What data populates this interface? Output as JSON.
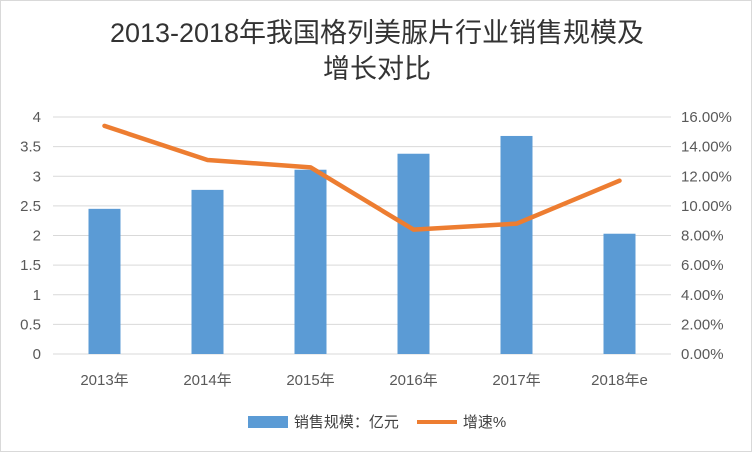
{
  "chart_data": {
    "type": "bar+line",
    "title": "2013-2018年我国格列美脲片行业销售规模及增长对比",
    "title_lines": [
      "2013-2018年我国格列美脲片行业销售规模及",
      "增长对比"
    ],
    "categories": [
      "2013年",
      "2014年",
      "2015年",
      "2016年",
      "2017年",
      "2018年e"
    ],
    "series": [
      {
        "name": "销售规模：亿元",
        "type": "bar",
        "axis": "left",
        "color": "#5b9bd5",
        "values": [
          2.45,
          2.77,
          3.11,
          3.38,
          3.68,
          2.03
        ]
      },
      {
        "name": "增速%",
        "type": "line",
        "axis": "right",
        "color": "#ed7d31",
        "values": [
          15.4,
          13.1,
          12.6,
          8.4,
          8.8,
          11.7
        ]
      }
    ],
    "left_axis": {
      "ylim": [
        0,
        4
      ],
      "ticks": [
        "0",
        "0.5",
        "1",
        "1.5",
        "2",
        "2.5",
        "3",
        "3.5",
        "4"
      ]
    },
    "right_axis": {
      "ylim": [
        0,
        16
      ],
      "ticks": [
        "0.00%",
        "2.00%",
        "4.00%",
        "6.00%",
        "8.00%",
        "10.00%",
        "12.00%",
        "14.00%",
        "16.00%"
      ]
    },
    "grid": true,
    "legend": "bottom"
  }
}
